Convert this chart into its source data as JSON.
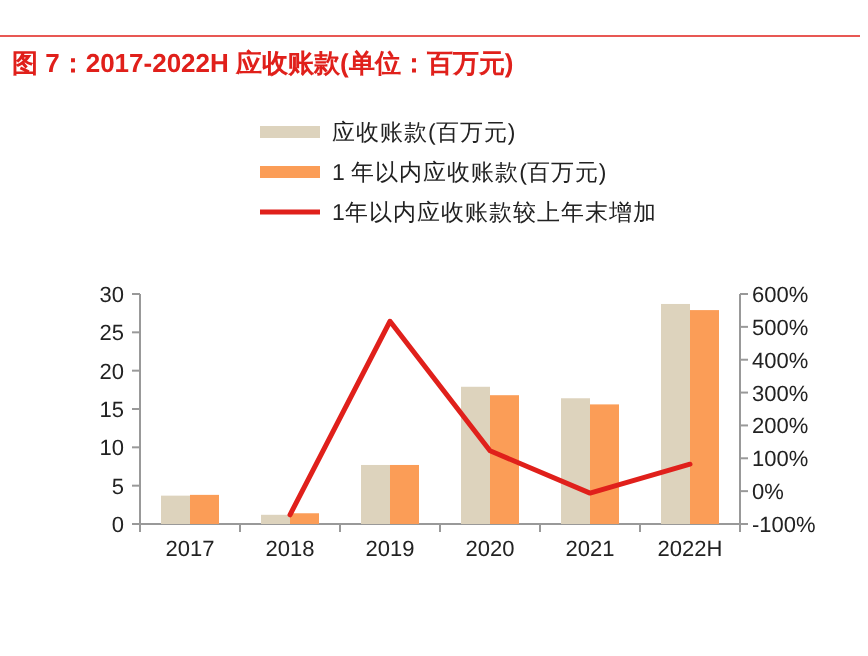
{
  "chart_data": {
    "type": "bar",
    "title": "图 7：2017-2022H 应收账款(单位：百万元)",
    "categories": [
      "2017",
      "2018",
      "2019",
      "2020",
      "2021",
      "2022H"
    ],
    "series": [
      {
        "name": "应收账款(百万元)",
        "color": "#ddd3bd",
        "values": [
          3.7,
          1.2,
          7.7,
          17.9,
          16.4,
          28.7
        ]
      },
      {
        "name": "1 年以内应收账款(百万元)",
        "color": "#fb9d57",
        "values": [
          3.8,
          1.4,
          7.7,
          16.8,
          15.6,
          27.9
        ]
      },
      {
        "name": "1年以内应收账款较上年末增加",
        "type": "line",
        "axis": "y2",
        "color": "#e0201b",
        "values": [
          null,
          -72,
          517,
          123,
          -6,
          82
        ]
      }
    ],
    "ylim": [
      0,
      30
    ],
    "yticks": [
      0,
      5,
      10,
      15,
      20,
      25,
      30
    ],
    "y2lim": [
      -100,
      600
    ],
    "y2ticks": [
      {
        "value": -100,
        "label": "-100%"
      },
      {
        "value": 0,
        "label": "0%"
      },
      {
        "value": 100,
        "label": "100%"
      },
      {
        "value": 200,
        "label": "200%"
      },
      {
        "value": 300,
        "label": "300%"
      },
      {
        "value": 400,
        "label": "400%"
      },
      {
        "value": 500,
        "label": "500%"
      },
      {
        "value": 600,
        "label": "600%"
      }
    ],
    "grid": false,
    "legend": "top",
    "marker": "none"
  }
}
